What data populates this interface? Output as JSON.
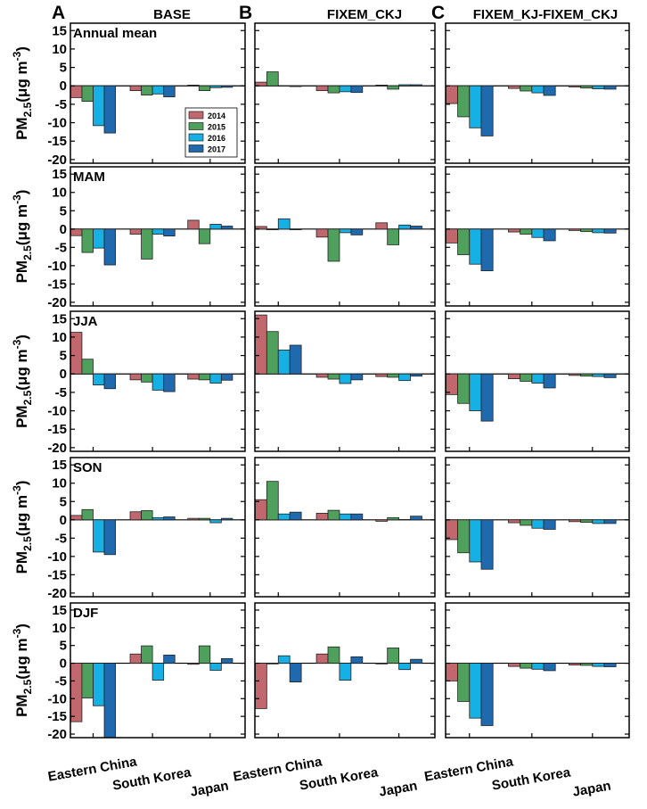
{
  "chart_data": {
    "type": "bar",
    "layout": "grid of 5 season rows by 3 simulation columns",
    "categories": [
      "Eastern China",
      "South Korea",
      "Japan"
    ],
    "series_names": [
      "2014",
      "2015",
      "2016",
      "2017"
    ],
    "colors": [
      "#c0686d",
      "#4ea05c",
      "#16b0e4",
      "#1f6aaf"
    ],
    "ylim": [
      -21,
      17
    ],
    "yticks": [
      15,
      10,
      5,
      0,
      -5,
      -10,
      -15,
      -20
    ],
    "ylabel": {
      "main": "PM",
      "sub": "2.5",
      "unit_open": "(",
      "mu": "μ",
      "unit_mid": "g m",
      "sup": "-3",
      "unit_close": ")"
    },
    "columns": [
      {
        "letter": "A",
        "title": "BASE"
      },
      {
        "letter": "B",
        "title": "FIXEM_CKJ"
      },
      {
        "letter": "C",
        "title": "FIXEM_KJ-FIXEM_CKJ"
      }
    ],
    "rows": [
      {
        "season": "Annual mean",
        "panels": [
          [
            [
              -3.2,
              -4.2,
              -10.8,
              -12.8
            ],
            [
              -1.3,
              -2.5,
              -2.2,
              -3.0
            ],
            [
              0.2,
              -1.3,
              -0.5,
              -0.4
            ]
          ],
          [
            [
              1.0,
              3.8,
              0.0,
              -0.2
            ],
            [
              -1.3,
              -1.9,
              -1.6,
              -1.8
            ],
            [
              0.2,
              -0.9,
              0.3,
              0.3
            ]
          ],
          [
            [
              -4.8,
              -8.4,
              -11.4,
              -13.6
            ],
            [
              -0.7,
              -1.4,
              -1.9,
              -2.6
            ],
            [
              -0.3,
              -0.6,
              -0.8,
              -0.9
            ]
          ]
        ]
      },
      {
        "season": "MAM",
        "panels": [
          [
            [
              -1.8,
              -6.4,
              -5.2,
              -9.8
            ],
            [
              -1.4,
              -8.2,
              -1.4,
              -1.9
            ],
            [
              2.4,
              -4.0,
              1.3,
              0.8
            ]
          ],
          [
            [
              0.7,
              -0.2,
              2.8,
              -0.2
            ],
            [
              -2.2,
              -8.8,
              -1.0,
              -1.6
            ],
            [
              1.7,
              -4.3,
              1.1,
              0.8
            ]
          ],
          [
            [
              -3.8,
              -7.0,
              -9.6,
              -11.4
            ],
            [
              -0.8,
              -1.4,
              -2.3,
              -3.2
            ],
            [
              -0.4,
              -0.7,
              -1.0,
              -1.1
            ]
          ]
        ]
      },
      {
        "season": "JJA",
        "panels": [
          [
            [
              11.3,
              4.0,
              -3.0,
              -4.0
            ],
            [
              -1.6,
              -2.2,
              -4.4,
              -4.8
            ],
            [
              -1.4,
              -1.6,
              -2.5,
              -1.7
            ]
          ],
          [
            [
              16.0,
              11.5,
              6.5,
              7.8
            ],
            [
              -0.9,
              -1.4,
              -2.6,
              -1.6
            ],
            [
              -0.7,
              -0.9,
              -1.8,
              -0.6
            ]
          ],
          [
            [
              -5.6,
              -8.0,
              -10.0,
              -12.8
            ],
            [
              -1.3,
              -2.0,
              -2.5,
              -3.8
            ],
            [
              -0.4,
              -0.6,
              -0.7,
              -1.0
            ]
          ]
        ]
      },
      {
        "season": "SON",
        "panels": [
          [
            [
              1.2,
              2.8,
              -8.8,
              -9.5
            ],
            [
              2.2,
              2.5,
              0.6,
              0.8
            ],
            [
              0.4,
              0.4,
              -0.8,
              0.4
            ]
          ],
          [
            [
              5.5,
              10.5,
              1.6,
              2.1
            ],
            [
              1.8,
              2.6,
              1.6,
              1.6
            ],
            [
              -0.4,
              0.6,
              0.1,
              1.0
            ]
          ],
          [
            [
              -5.4,
              -9.0,
              -11.5,
              -13.5
            ],
            [
              -0.8,
              -1.5,
              -2.3,
              -2.6
            ],
            [
              -0.5,
              -0.7,
              -1.0,
              -1.0
            ]
          ]
        ]
      },
      {
        "season": "DJF",
        "panels": [
          [
            [
              -16.5,
              -9.8,
              -12.0,
              -21.0
            ],
            [
              2.6,
              4.9,
              -4.8,
              2.3
            ],
            [
              -0.3,
              4.9,
              -2.0,
              1.3
            ]
          ],
          [
            [
              -12.8,
              -0.2,
              2.1,
              -5.3
            ],
            [
              2.6,
              4.6,
              -4.8,
              1.8
            ],
            [
              -0.2,
              4.3,
              -1.8,
              1.1
            ]
          ],
          [
            [
              -5.0,
              -10.8,
              -15.5,
              -17.6
            ],
            [
              -0.9,
              -1.4,
              -1.7,
              -2.1
            ],
            [
              -0.5,
              -0.6,
              -0.9,
              -1.0
            ]
          ]
        ]
      }
    ]
  }
}
